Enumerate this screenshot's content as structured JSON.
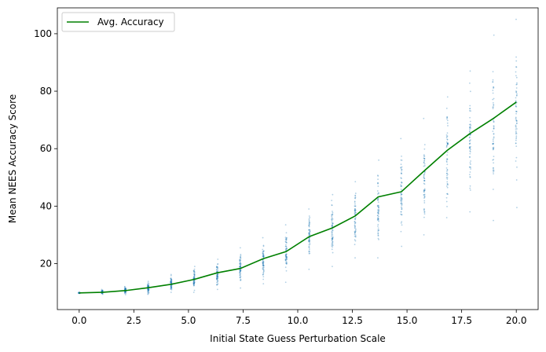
{
  "chart_data": {
    "type": "line",
    "title": "",
    "xlabel": "Initial State Guess Perturbation Scale",
    "ylabel": "Mean NEES Accuracy Score",
    "xlim": [
      -1.0,
      21.0
    ],
    "ylim": [
      4.0,
      109.0
    ],
    "xticks": [
      0.0,
      2.5,
      5.0,
      7.5,
      10.0,
      12.5,
      15.0,
      17.5,
      20.0
    ],
    "xtick_labels": [
      "0.0",
      "2.5",
      "5.0",
      "7.5",
      "10.0",
      "12.5",
      "15.0",
      "17.5",
      "20.0"
    ],
    "yticks": [
      20,
      40,
      60,
      80,
      100
    ],
    "ytick_labels": [
      "20",
      "40",
      "60",
      "80",
      "100"
    ],
    "grid": false,
    "legend": {
      "position": "top-left"
    },
    "series": [
      {
        "name": "Avg. Accuracy",
        "color": "#008000",
        "x": [
          0.0,
          1.05,
          2.11,
          3.16,
          4.21,
          5.26,
          6.32,
          7.37,
          8.42,
          9.47,
          10.53,
          11.58,
          12.63,
          13.68,
          14.74,
          15.79,
          16.84,
          17.89,
          18.95,
          20.0
        ],
        "y": [
          9.8,
          10.0,
          10.6,
          11.6,
          12.8,
          14.5,
          16.8,
          18.3,
          21.7,
          24.2,
          29.4,
          32.4,
          36.6,
          43.2,
          45.0,
          52.3,
          59.4,
          65.3,
          70.5,
          76.2
        ]
      }
    ],
    "scatter": {
      "color": "#1f77b4",
      "description_points": "vertical clusters of individual run scores at each x value",
      "clusters": [
        {
          "x": 0.0,
          "ymin": 9.6,
          "ymax": 10.0
        },
        {
          "x": 1.05,
          "ymin": 9.3,
          "ymax": 11.0
        },
        {
          "x": 2.11,
          "ymin": 9.2,
          "ymax": 12.0
        },
        {
          "x": 3.16,
          "ymin": 9.3,
          "ymax": 13.8
        },
        {
          "x": 4.21,
          "ymin": 10.0,
          "ymax": 16.2
        },
        {
          "x": 5.26,
          "ymin": 10.0,
          "ymax": 19.0
        },
        {
          "x": 6.32,
          "ymin": 11.0,
          "ymax": 21.5
        },
        {
          "x": 7.37,
          "ymin": 11.5,
          "ymax": 25.5
        },
        {
          "x": 8.42,
          "ymin": 13.0,
          "ymax": 29.0
        },
        {
          "x": 9.47,
          "ymin": 13.5,
          "ymax": 33.5
        },
        {
          "x": 10.53,
          "ymin": 18.0,
          "ymax": 39.0
        },
        {
          "x": 11.58,
          "ymin": 19.0,
          "ymax": 44.0
        },
        {
          "x": 12.63,
          "ymin": 22.0,
          "ymax": 48.5
        },
        {
          "x": 13.68,
          "ymin": 22.0,
          "ymax": 56.0
        },
        {
          "x": 14.74,
          "ymin": 26.0,
          "ymax": 63.5
        },
        {
          "x": 15.79,
          "ymin": 30.0,
          "ymax": 70.5
        },
        {
          "x": 16.84,
          "ymin": 36.0,
          "ymax": 78.0
        },
        {
          "x": 17.89,
          "ymin": 38.0,
          "ymax": 87.0
        },
        {
          "x": 18.95,
          "ymin": 35.0,
          "ymax": 99.5
        },
        {
          "x": 20.0,
          "ymin": 39.5,
          "ymax": 105.0
        }
      ],
      "points_per_cluster": 60
    }
  }
}
